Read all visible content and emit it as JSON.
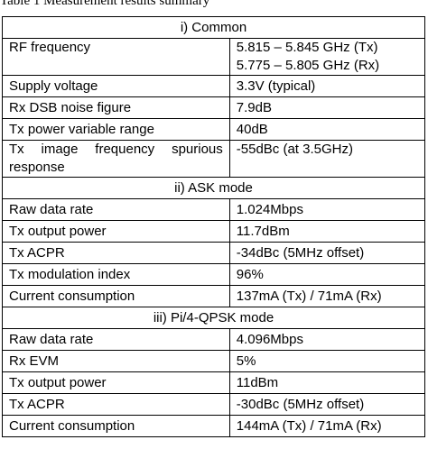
{
  "caption": "Table 1  Measurement results summary",
  "sections": [
    {
      "title": "i) Common",
      "rows": [
        {
          "param": [
            "RF frequency"
          ],
          "value": [
            "5.815 – 5.845 GHz (Tx)",
            "5.775 – 5.805 GHz (Rx)"
          ]
        },
        {
          "param": [
            "Supply voltage"
          ],
          "value": [
            "3.3V (typical)"
          ]
        },
        {
          "param": [
            "Rx DSB noise figure"
          ],
          "value": [
            "7.9dB"
          ]
        },
        {
          "param": [
            "Tx power variable range"
          ],
          "value": [
            "40dB"
          ]
        },
        {
          "param": [
            "Tx image frequency spurious",
            "response"
          ],
          "value": [
            "-55dBc (at 3.5GHz)"
          ]
        }
      ]
    },
    {
      "title": "ii)  ASK mode",
      "rows": [
        {
          "param": [
            "Raw data rate"
          ],
          "value": [
            "1.024Mbps"
          ]
        },
        {
          "param": [
            "Tx output power"
          ],
          "value": [
            "11.7dBm"
          ]
        },
        {
          "param": [
            "Tx ACPR"
          ],
          "value": [
            "-34dBc (5MHz offset)"
          ]
        },
        {
          "param": [
            "Tx modulation index"
          ],
          "value": [
            "96%"
          ]
        },
        {
          "param": [
            "Current consumption"
          ],
          "value": [
            "137mA (Tx) / 71mA (Rx)"
          ]
        }
      ]
    },
    {
      "title": "iii) Pi/4-QPSK mode",
      "rows": [
        {
          "param": [
            "Raw data rate"
          ],
          "value": [
            "4.096Mbps"
          ]
        },
        {
          "param": [
            "Rx EVM"
          ],
          "value": [
            "5%"
          ]
        },
        {
          "param": [
            "Tx output power"
          ],
          "value": [
            "11dBm"
          ]
        },
        {
          "param": [
            "Tx ACPR"
          ],
          "value": [
            "-30dBc (5MHz offset)"
          ]
        },
        {
          "param": [
            "Current consumption"
          ],
          "value": [
            "144mA (Tx) / 71mA (Rx)"
          ]
        }
      ]
    }
  ]
}
